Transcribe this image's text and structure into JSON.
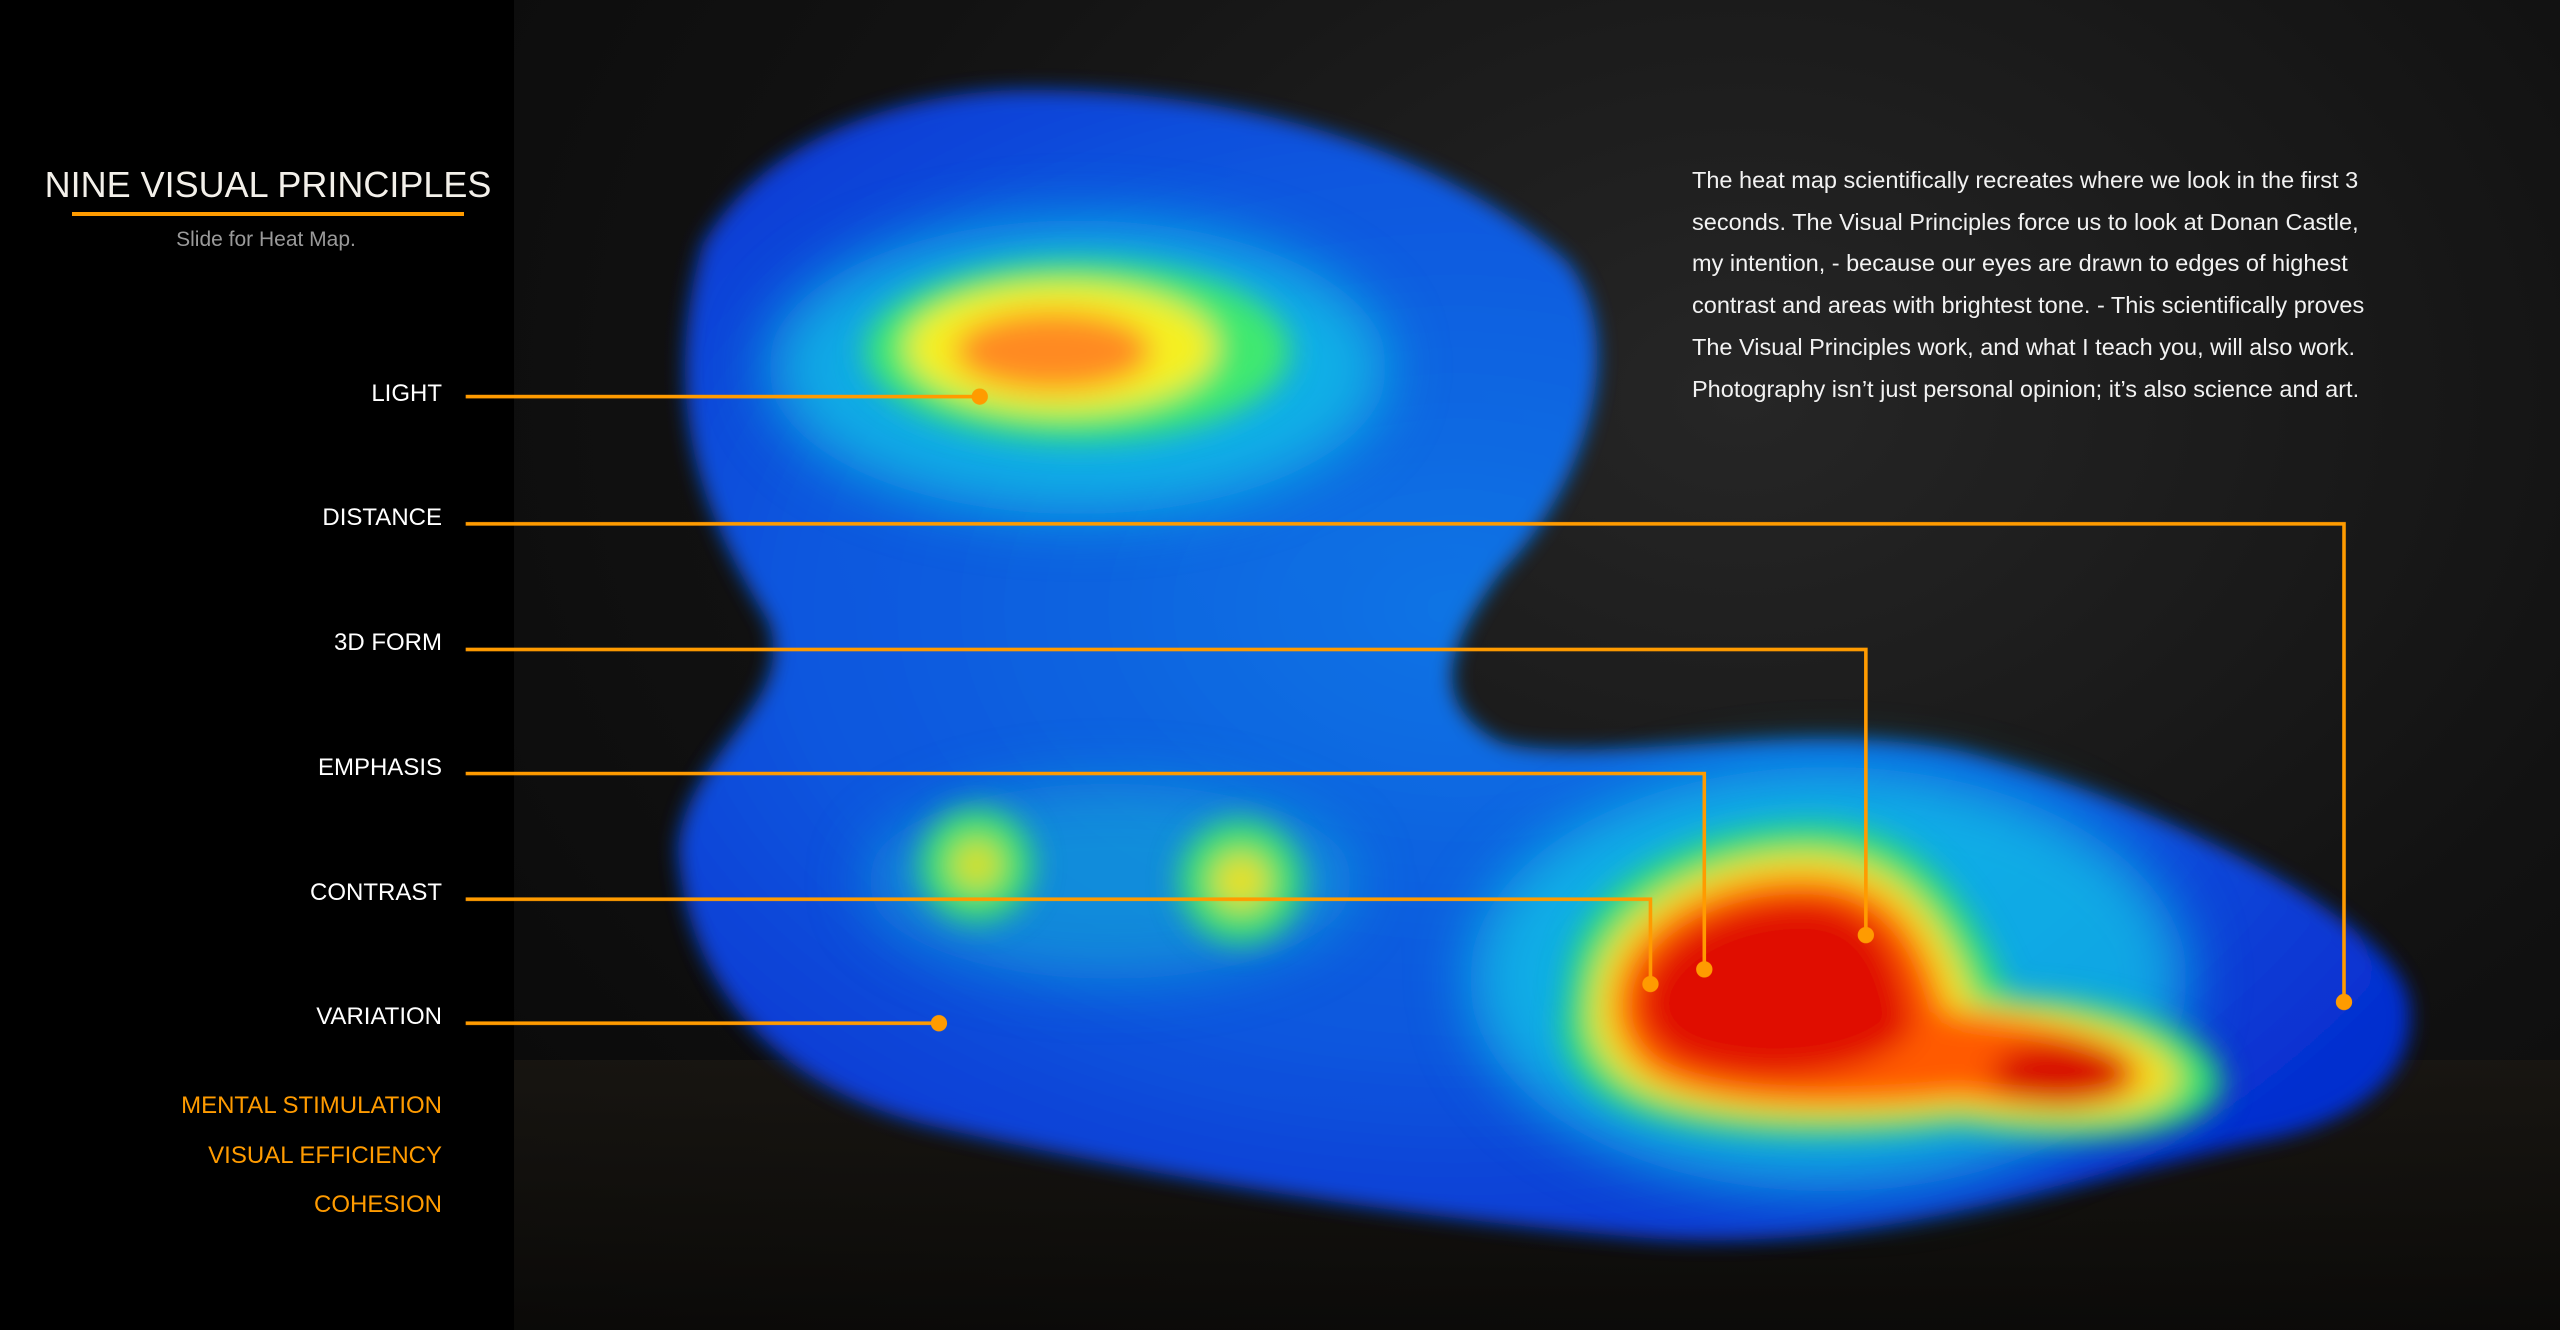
{
  "header": {
    "title": "NINE VISUAL PRINCIPLES",
    "subtitle": "Slide for Heat Map."
  },
  "principles": [
    {
      "label": "LIGHT",
      "linked": true
    },
    {
      "label": "DISTANCE",
      "linked": true
    },
    {
      "label": "3D FORM",
      "linked": true
    },
    {
      "label": "EMPHASIS",
      "linked": true
    },
    {
      "label": "CONTRAST",
      "linked": true
    },
    {
      "label": "VARIATION",
      "linked": true
    },
    {
      "label": "MENTAL STIMULATION",
      "linked": false
    },
    {
      "label": "VISUAL EFFICIENCY",
      "linked": false
    },
    {
      "label": "COHESION",
      "linked": false
    }
  ],
  "description": "The heat map scientifically recreates where we look in the first 3 seconds. The Visual Principles force us to look at Donan Castle, my intention, - because our eyes are drawn to edges of highest contrast and areas with brightest tone. - This scientifically proves The Visual Principles work, and what I teach you, will also work. Photography isn’t just personal opinion; it’s also science and art.",
  "colors": {
    "accent": "#ff9b00",
    "heat_cold": "#0a3cf0",
    "heat_warm": "#ff2a00",
    "background": "#000000"
  }
}
